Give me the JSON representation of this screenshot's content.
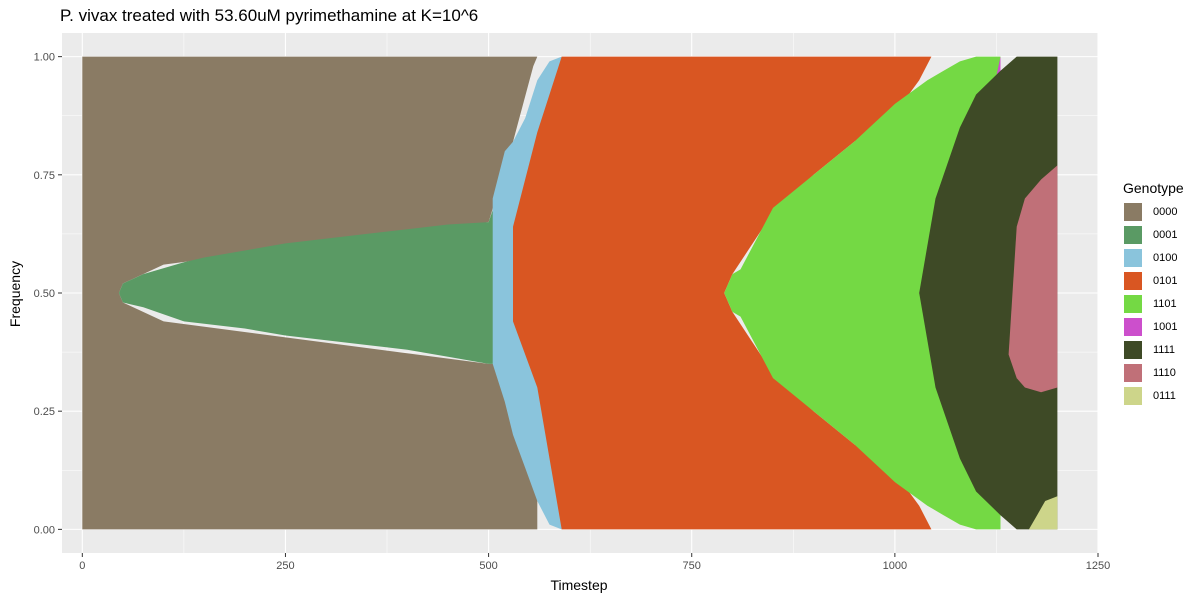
{
  "chart_data": {
    "type": "area",
    "title": "P. vivax treated with 53.60uM pyrimethamine at K=10^6",
    "xlabel": "Timestep",
    "ylabel": "Frequency",
    "xlim": [
      -25,
      1250
    ],
    "ylim": [
      -0.05,
      1.05
    ],
    "xticks": [
      0,
      250,
      500,
      750,
      1000,
      1250
    ],
    "xtick_labels": [
      "0",
      "250",
      "500",
      "750",
      "1000",
      "1250"
    ],
    "yticks": [
      0,
      0.25,
      0.5,
      0.75,
      1.0
    ],
    "ytick_labels": [
      "0.00",
      "0.25",
      "0.50",
      "0.75",
      "1.00"
    ],
    "grid": true,
    "legend": {
      "title": "Genotype",
      "position": "right"
    },
    "stacking": "centered-stream",
    "series": [
      {
        "name": "0000",
        "color": "#8a7b64",
        "x": [
          0,
          45,
          50,
          100,
          500,
          530,
          555,
          560
        ],
        "lower": [
          0,
          0,
          0,
          0,
          0,
          0,
          0,
          0
        ],
        "upper": [
          1,
          1,
          1,
          1,
          1,
          1,
          1,
          1
        ],
        "hole_lower": [
          0.5,
          0.5,
          0.48,
          0.44,
          0.35,
          0.35,
          0.35,
          0.35
        ],
        "hole_upper": [
          0.5,
          0.5,
          0.52,
          0.56,
          0.65,
          0.82,
          0.98,
          1.0
        ]
      },
      {
        "name": "0001",
        "color": "#5a9a64",
        "x": [
          45,
          50,
          75,
          125,
          150,
          200,
          250,
          300,
          350,
          400,
          450,
          500,
          510,
          520,
          530
        ],
        "lower": [
          0.5,
          0.48,
          0.47,
          0.44,
          0.435,
          0.425,
          0.41,
          0.4,
          0.39,
          0.38,
          0.365,
          0.35,
          0.35,
          0.45,
          0.55
        ],
        "upper": [
          0.5,
          0.52,
          0.54,
          0.565,
          0.575,
          0.59,
          0.605,
          0.615,
          0.625,
          0.635,
          0.645,
          0.65,
          0.7,
          0.78,
          0.8
        ]
      },
      {
        "name": "0100",
        "color": "#8ac4dc",
        "x": [
          505,
          520,
          530,
          545,
          560,
          575,
          590
        ],
        "lower": [
          0.35,
          0.27,
          0.2,
          0.13,
          0.06,
          0.01,
          0.0
        ],
        "upper": [
          0.7,
          0.8,
          0.82,
          0.87,
          0.95,
          0.99,
          1.0
        ]
      },
      {
        "name": "0101",
        "color": "#d95622",
        "x": [
          530,
          560,
          590,
          650,
          700,
          750,
          790,
          800,
          850,
          900,
          950,
          1000,
          1030,
          1045
        ],
        "lower": [
          0.44,
          0.3,
          0.0,
          0.0,
          0.0,
          0.0,
          0.0,
          0.0,
          0.0,
          0.0,
          0.0,
          0.0,
          0.0,
          0.0
        ],
        "upper": [
          0.64,
          0.84,
          1.0,
          1.0,
          1.0,
          1.0,
          1.0,
          1.0,
          1.0,
          1.0,
          1.0,
          1.0,
          1.0,
          1.0
        ],
        "hole_lower": [
          null,
          null,
          null,
          null,
          null,
          null,
          0.5,
          0.46,
          0.33,
          0.25,
          0.18,
          0.12,
          0.05,
          0.0
        ],
        "hole_upper": [
          null,
          null,
          null,
          null,
          null,
          null,
          0.5,
          0.54,
          0.67,
          0.75,
          0.82,
          0.88,
          0.95,
          1.0
        ]
      },
      {
        "name": "1101",
        "color": "#74d944",
        "x": [
          790,
          800,
          810,
          850,
          900,
          950,
          1000,
          1040,
          1060,
          1080,
          1100,
          1130
        ],
        "lower": [
          0.5,
          0.46,
          0.45,
          0.32,
          0.25,
          0.18,
          0.1,
          0.05,
          0.03,
          0.01,
          0.0,
          0.0
        ],
        "upper": [
          0.5,
          0.54,
          0.55,
          0.68,
          0.75,
          0.82,
          0.9,
          0.95,
          0.97,
          0.99,
          1.0,
          1.0
        ]
      },
      {
        "name": "1001",
        "color": "#cc4fcc",
        "x": [
          1030,
          1040,
          1060,
          1080,
          1100,
          1120,
          1130
        ],
        "lower": [
          0.5,
          0.46,
          0.4,
          0.48,
          0.57,
          0.65,
          0.9
        ],
        "upper": [
          0.5,
          0.57,
          0.75,
          0.82,
          0.88,
          0.92,
          1.0
        ]
      },
      {
        "name": "1111",
        "color": "#3e4a26",
        "x": [
          1030,
          1050,
          1080,
          1100,
          1130,
          1150,
          1165,
          1180,
          1200
        ],
        "lower": [
          0.5,
          0.3,
          0.15,
          0.08,
          0.03,
          0.0,
          0.0,
          0.0,
          0.0
        ],
        "upper": [
          0.5,
          0.7,
          0.85,
          0.92,
          0.97,
          1.0,
          1.0,
          1.0,
          1.0
        ]
      },
      {
        "name": "1110",
        "color": "#c07078",
        "x": [
          1140,
          1150,
          1160,
          1180,
          1200
        ],
        "lower": [
          0.37,
          0.32,
          0.3,
          0.29,
          0.3
        ],
        "upper": [
          0.37,
          0.64,
          0.7,
          0.74,
          0.77
        ]
      },
      {
        "name": "0111",
        "color": "#cdd58a",
        "x": [
          1165,
          1175,
          1185,
          1200
        ],
        "lower": [
          0.0,
          0.0,
          0.0,
          0.0
        ],
        "upper": [
          0.0,
          0.03,
          0.06,
          0.07
        ]
      }
    ]
  }
}
